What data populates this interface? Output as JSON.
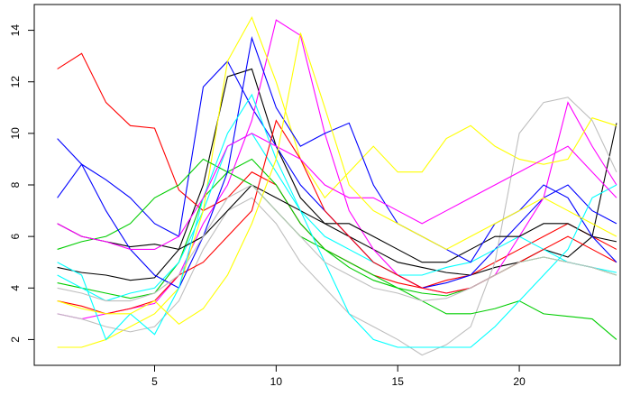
{
  "chart_data": {
    "type": "line",
    "x": [
      1,
      2,
      3,
      4,
      5,
      6,
      7,
      8,
      9,
      10,
      11,
      12,
      13,
      14,
      15,
      16,
      17,
      18,
      19,
      20,
      21,
      22,
      23,
      24
    ],
    "xlim": [
      0.05,
      24.15
    ],
    "ylim": [
      1.0,
      15.0
    ],
    "xticks": [
      5,
      10,
      15,
      20
    ],
    "yticks": [
      2,
      4,
      6,
      8,
      10,
      12,
      14
    ],
    "series": [
      {
        "color": "#000000",
        "values": [
          4.8,
          4.6,
          4.5,
          4.3,
          4.4,
          5.5,
          8.0,
          12.2,
          12.5,
          9.5,
          7.5,
          6.5,
          6.0,
          5.5,
          5.0,
          4.8,
          4.6,
          4.5,
          4.8,
          5.0,
          5.5,
          5.2,
          6.0,
          10.4
        ]
      },
      {
        "color": "#ff0000",
        "values": [
          12.5,
          13.1,
          11.2,
          10.3,
          10.2,
          7.8,
          7.0,
          7.5,
          8.5,
          8.0,
          6.5,
          5.5,
          5.0,
          4.5,
          4.2,
          4.0,
          4.3,
          4.5,
          5.0,
          5.5,
          6.0,
          6.5,
          6.0,
          5.5
        ]
      },
      {
        "color": "#00cd00",
        "values": [
          4.2,
          4.0,
          3.8,
          3.6,
          3.8,
          5.0,
          7.5,
          8.5,
          9.0,
          8.0,
          6.5,
          5.5,
          4.8,
          4.3,
          4.0,
          3.8,
          3.7,
          4.0,
          4.5,
          5.0,
          5.2,
          5.0,
          4.8,
          4.5
        ]
      },
      {
        "color": "#0000ff",
        "values": [
          9.8,
          8.8,
          8.2,
          7.5,
          6.5,
          6.0,
          11.8,
          12.8,
          11.0,
          9.5,
          8.0,
          7.0,
          6.0,
          5.0,
          4.5,
          4.0,
          4.2,
          4.5,
          5.5,
          6.5,
          7.5,
          8.0,
          7.0,
          6.5
        ]
      },
      {
        "color": "#00ffff",
        "values": [
          4.5,
          4.0,
          3.5,
          3.8,
          4.0,
          5.0,
          7.0,
          9.5,
          10.0,
          8.5,
          7.0,
          6.0,
          5.5,
          5.0,
          4.5,
          4.5,
          4.8,
          5.0,
          5.5,
          6.0,
          5.5,
          5.0,
          4.8,
          4.6
        ]
      },
      {
        "color": "#ff00ff",
        "values": [
          3.0,
          2.8,
          3.0,
          3.2,
          3.4,
          4.5,
          6.5,
          8.0,
          10.5,
          14.4,
          13.8,
          10.0,
          7.0,
          5.5,
          4.5,
          4.0,
          3.8,
          4.0,
          4.5,
          6.0,
          7.5,
          11.2,
          9.5,
          8.0
        ]
      },
      {
        "color": "#ffff00",
        "values": [
          1.7,
          1.7,
          2.0,
          2.5,
          3.0,
          4.0,
          7.0,
          12.8,
          14.5,
          12.0,
          9.0,
          7.5,
          8.5,
          9.5,
          8.5,
          8.5,
          9.8,
          10.3,
          9.5,
          9.0,
          8.8,
          9.0,
          10.6,
          10.3
        ]
      },
      {
        "color": "#bebebe",
        "values": [
          3.0,
          2.8,
          2.5,
          2.3,
          2.5,
          3.5,
          5.5,
          7.0,
          7.5,
          6.5,
          5.0,
          4.0,
          3.0,
          2.5,
          2.0,
          1.4,
          1.8,
          2.5,
          5.0,
          10.0,
          11.2,
          11.4,
          10.5,
          8.5
        ]
      },
      {
        "color": "#000000",
        "values": [
          6.5,
          6.0,
          5.8,
          5.6,
          5.7,
          5.5,
          6.0,
          7.0,
          8.0,
          7.5,
          7.0,
          6.5,
          6.5,
          6.0,
          5.5,
          5.0,
          5.0,
          5.5,
          6.0,
          6.0,
          6.5,
          6.5,
          6.0,
          5.8
        ]
      },
      {
        "color": "#ff0000",
        "values": [
          3.5,
          3.3,
          3.0,
          3.2,
          3.5,
          4.5,
          5.0,
          6.0,
          7.0,
          10.5,
          9.0,
          7.0,
          6.0,
          5.0,
          4.5,
          4.0,
          3.8,
          4.0,
          4.5,
          5.0,
          5.5,
          6.0,
          5.5,
          5.0
        ]
      },
      {
        "color": "#00cd00",
        "values": [
          5.5,
          5.8,
          6.0,
          6.5,
          7.5,
          8.0,
          9.0,
          8.5,
          8.0,
          7.0,
          6.0,
          5.5,
          5.0,
          4.5,
          4.0,
          3.5,
          3.0,
          3.0,
          3.2,
          3.5,
          3.0,
          2.9,
          2.8,
          2.0
        ]
      },
      {
        "color": "#0000ff",
        "values": [
          7.5,
          8.8,
          7.0,
          5.5,
          4.5,
          4.0,
          6.0,
          8.5,
          13.7,
          11.0,
          9.5,
          10.0,
          10.4,
          8.0,
          6.5,
          6.0,
          5.5,
          5.0,
          6.5,
          7.0,
          8.0,
          7.5,
          6.0,
          5.0
        ]
      },
      {
        "color": "#00ffff",
        "values": [
          5.0,
          4.5,
          2.0,
          3.0,
          2.2,
          4.0,
          7.5,
          10.0,
          11.5,
          9.0,
          7.0,
          5.0,
          3.0,
          2.0,
          1.7,
          1.7,
          1.7,
          1.7,
          2.5,
          3.5,
          4.5,
          5.5,
          7.5,
          8.0
        ]
      },
      {
        "color": "#ff00ff",
        "values": [
          6.5,
          6.0,
          5.8,
          5.5,
          5.5,
          6.0,
          7.5,
          9.5,
          10.0,
          9.5,
          9.0,
          8.0,
          7.5,
          7.5,
          7.0,
          6.5,
          7.0,
          7.5,
          8.0,
          8.5,
          9.0,
          9.5,
          8.5,
          7.5
        ]
      },
      {
        "color": "#ffff00",
        "values": [
          3.5,
          3.2,
          3.0,
          3.0,
          3.5,
          2.6,
          3.2,
          4.5,
          6.5,
          9.0,
          13.9,
          11.0,
          8.0,
          7.0,
          6.5,
          6.0,
          5.5,
          6.0,
          6.5,
          7.0,
          7.5,
          7.0,
          6.5,
          6.0
        ]
      },
      {
        "color": "#bebebe",
        "values": [
          4.0,
          3.8,
          3.5,
          3.5,
          3.8,
          4.5,
          6.0,
          7.5,
          8.0,
          7.0,
          6.0,
          5.0,
          4.5,
          4.0,
          3.8,
          3.5,
          3.6,
          4.0,
          4.5,
          5.0,
          5.2,
          5.0,
          4.8,
          4.5
        ]
      }
    ]
  }
}
